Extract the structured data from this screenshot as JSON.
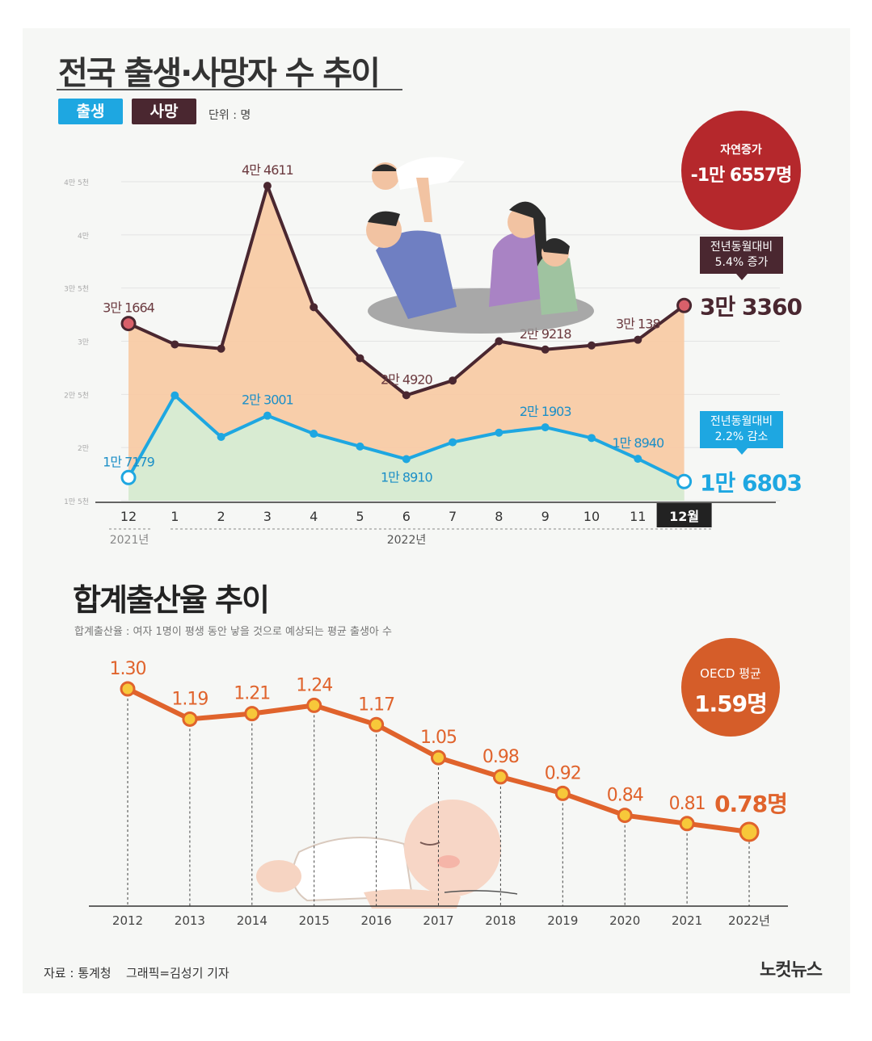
{
  "chart1": {
    "title": "전국 출생·사망자 수 추이",
    "legend": {
      "birth": "출생",
      "death": "사망",
      "unit": "단위 : 명"
    },
    "natural_increase": {
      "label": "자연증가",
      "value": "-1만 6557명"
    },
    "death_callout": {
      "line1": "전년동월대비",
      "line2": "5.4% 증가"
    },
    "birth_callout": {
      "line1": "전년동월대비",
      "line2": "2.2% 감소"
    },
    "last_death_label": "3만 3360",
    "last_birth_label": "1만 6803",
    "year_2021": "2021년",
    "year_2022": "2022년"
  },
  "chart2": {
    "title": "합계출산율 추이",
    "subtitle": "합계출산율 : 여자 1명이 평생 동안 낳을 것으로 예상되는 평균 출생아 수",
    "oecd_label": "OECD 평균",
    "oecd_value": "1.59명",
    "last_value_label": "0.78명"
  },
  "footer": {
    "source": "자료 : 통계청",
    "credit": "그래픽=김성기 기자",
    "logo": "노컷뉴스"
  },
  "colors": {
    "birth": "#1ea7e1",
    "death": "#4a2730",
    "death_fill": "#f8c9a2",
    "birth_fill": "#d8ebd2",
    "fertility": "#e0632c",
    "fertility_point": "#f7c83a",
    "natural_badge": "#b5282c",
    "oecd_badge": "#d55d29"
  },
  "chart_data": [
    {
      "type": "line",
      "title": "전국 출생·사망자 수 추이",
      "categories": [
        "12",
        "1",
        "2",
        "3",
        "4",
        "5",
        "6",
        "7",
        "8",
        "9",
        "10",
        "11",
        "12월"
      ],
      "y_ticks": [
        "1만 5천",
        "2만",
        "2만 5천",
        "3만",
        "3만 5천",
        "4만",
        "4만 5천"
      ],
      "ylim": [
        15000,
        45000
      ],
      "series": [
        {
          "name": "사망",
          "values": [
            31664,
            29700,
            29300,
            44611,
            33200,
            28400,
            24920,
            26300,
            30000,
            29218,
            29600,
            30138,
            33360
          ],
          "labels": [
            "3만 1664",
            "",
            "",
            "4만 4611",
            "",
            "",
            "2만 4920",
            "",
            "",
            "2만 9218",
            "",
            "3만 138",
            ""
          ]
        },
        {
          "name": "출생",
          "values": [
            17179,
            24900,
            21000,
            23001,
            21300,
            20100,
            18910,
            20500,
            21400,
            21903,
            20900,
            18940,
            16803
          ],
          "labels": [
            "1만 7179",
            "",
            "",
            "2만 3001",
            "",
            "",
            "1만 8910",
            "",
            "",
            "2만 1903",
            "",
            "1만 8940",
            ""
          ]
        }
      ]
    },
    {
      "type": "line",
      "title": "합계출산율 추이",
      "categories": [
        "2012",
        "2013",
        "2014",
        "2015",
        "2016",
        "2017",
        "2018",
        "2019",
        "2020",
        "2021",
        "2022년"
      ],
      "values": [
        1.3,
        1.19,
        1.21,
        1.24,
        1.17,
        1.05,
        0.98,
        0.92,
        0.84,
        0.81,
        0.78
      ],
      "labels": [
        "1.30",
        "1.19",
        "1.21",
        "1.24",
        "1.17",
        "1.05",
        "0.98",
        "0.92",
        "0.84",
        "0.81",
        ""
      ]
    }
  ]
}
